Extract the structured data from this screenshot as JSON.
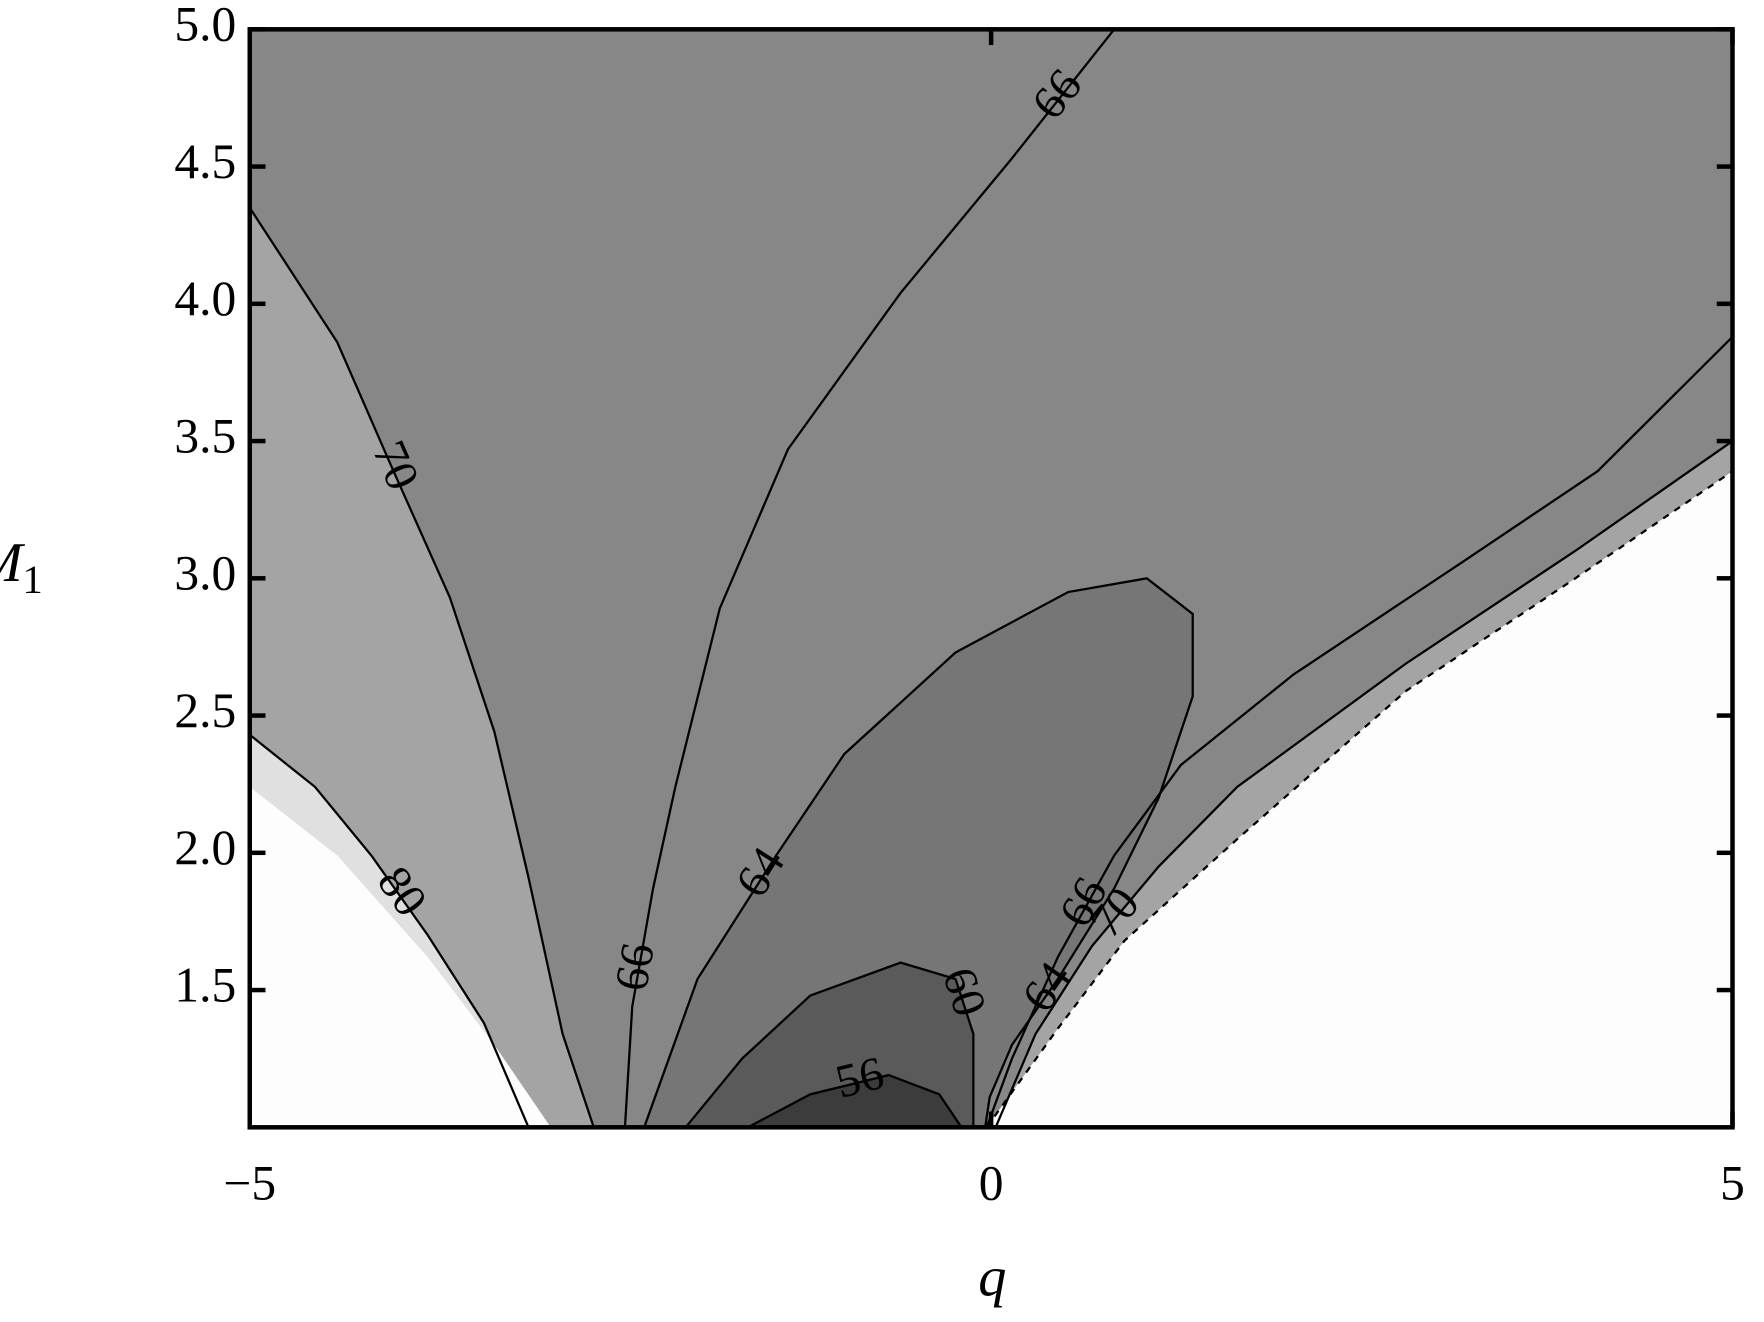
{
  "chart_data": {
    "type": "contour",
    "xlabel": "q",
    "ylabel": "M",
    "ylabel_subscript": "1",
    "xlim": [
      -5,
      5
    ],
    "ylim": [
      1.0,
      5.0
    ],
    "xticks": [
      {
        "value": -5,
        "label": "−5"
      },
      0,
      5
    ],
    "yticks": [
      1.5,
      {
        "value": 2,
        "label": "2.0"
      },
      2.5,
      {
        "value": 3,
        "label": "3.0"
      },
      3.5,
      {
        "value": 4,
        "label": "4.0"
      },
      4.5,
      {
        "value": 5,
        "label": "5.0"
      }
    ],
    "background": "#878787",
    "contours": [
      {
        "level": 70,
        "fill": "#a4a4a4",
        "x": [
          -5,
          -4.41,
          -4.03,
          -3.65,
          -3.35,
          -3.12,
          -2.89,
          -2.68
        ],
        "y": [
          4.35,
          3.86,
          3.39,
          2.93,
          2.44,
          1.91,
          1.34,
          1.0
        ]
      },
      {
        "level": 80,
        "fill": "#e0e0e0",
        "x": [
          -5,
          -4.56,
          -4.18,
          -3.8,
          -3.42,
          -3.12
        ],
        "y": [
          2.43,
          2.24,
          1.99,
          1.7,
          1.38,
          1.0
        ]
      },
      {
        "level": 66,
        "x": [
          -2.47,
          -2.42,
          -2.28,
          -2.13,
          -1.83,
          -1.37,
          -0.61,
          0.14,
          0.83
        ],
        "y": [
          1.0,
          1.44,
          1.87,
          2.24,
          2.89,
          3.47,
          4.04,
          4.53,
          5.0
        ]
      },
      {
        "level": 64,
        "fill": "#767676",
        "x": [
          -2.34,
          -1.98,
          -1.45,
          -0.99,
          -0.24,
          0.52,
          1.05,
          1.36,
          1.36,
          1.13,
          0.83,
          0.45,
          0.14,
          -0.01,
          -0.04
        ],
        "y": [
          1.0,
          1.54,
          1.99,
          2.36,
          2.73,
          2.95,
          3.0,
          2.87,
          2.57,
          2.2,
          1.87,
          1.54,
          1.3,
          1.11,
          1.0
        ]
      },
      {
        "level": 60,
        "fill": "#5a5a5a",
        "x": [
          -2.06,
          -1.68,
          -1.22,
          -0.61,
          -0.24,
          -0.12,
          -0.12
        ],
        "y": [
          1.0,
          1.25,
          1.48,
          1.6,
          1.54,
          1.34,
          1.0
        ]
      },
      {
        "level": 56,
        "fill": "#3c3c3c",
        "x": [
          -1.64,
          -1.22,
          -0.69,
          -0.35,
          -0.2
        ],
        "y": [
          1.0,
          1.12,
          1.19,
          1.12,
          1.0
        ]
      },
      {
        "level": 66,
        "x": [
          -0.03,
          0.14,
          0.45,
          0.83,
          1.28,
          2.04,
          3.18,
          4.09,
          5
        ],
        "y": [
          1.0,
          1.25,
          1.62,
          1.99,
          2.32,
          2.65,
          3.06,
          3.39,
          3.88
        ]
      },
      {
        "level": 70,
        "fill": "#a4a4a4",
        "x": [
          0.03,
          0.3,
          0.68,
          1.13,
          1.66,
          2.8,
          3.94,
          5
        ],
        "y": [
          1.0,
          1.34,
          1.66,
          1.95,
          2.24,
          2.69,
          3.1,
          3.5
        ]
      }
    ],
    "boundaries": [
      {
        "fill": "#fdfdfd",
        "x": [
          -5,
          -4.41,
          -3.8,
          -3.35,
          -2.97
        ],
        "y": [
          2.24,
          1.99,
          1.62,
          1.3,
          1.0
        ]
      },
      {
        "fill": "#fdfdfd",
        "style": "dashed",
        "x": [
          -0.03,
          0.45,
          0.9,
          1.66,
          2.8,
          3.94,
          5
        ],
        "y": [
          1.0,
          1.36,
          1.68,
          2.05,
          2.59,
          3.0,
          3.39
        ]
      }
    ]
  }
}
